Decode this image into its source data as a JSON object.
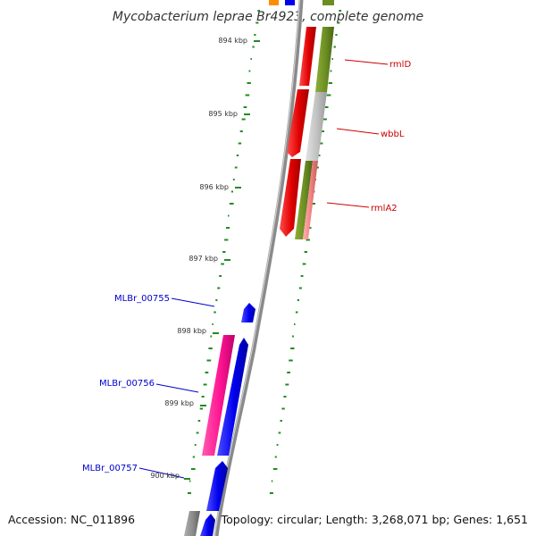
{
  "title": "Mycobacterium leprae Br4923, complete genome",
  "footer": {
    "accession": "Accession: NC_011896",
    "summary": "Topology: circular; Length: 3,268,071 bp; Genes: 1,651"
  },
  "ticks": [
    "894 kbp",
    "895 kbp",
    "896 kbp",
    "897 kbp",
    "898 kbp",
    "899 kbp",
    "900 kbp"
  ],
  "forward_genes": [
    {
      "label": "rmlD",
      "color": "#e60000",
      "track_color": "#6b8e23"
    },
    {
      "label": "wbbL",
      "color": "#e60000",
      "track_color": "#c0c0c0"
    },
    {
      "label": "rmlA2",
      "color": "#e60000",
      "track_color": "#f08080"
    }
  ],
  "reverse_genes": [
    {
      "label": "MLBr_00755",
      "color": "#0000ee"
    },
    {
      "label": "MLBr_00756",
      "color": "#0000ee",
      "track_color": "#ff1493"
    },
    {
      "label": "MLBr_00757",
      "color": "#0000ee"
    }
  ],
  "colors": {
    "backbone": "#808080",
    "gc_skew": "#228b22",
    "forward_label": "#cc0000",
    "reverse_label": "#0000cc"
  }
}
